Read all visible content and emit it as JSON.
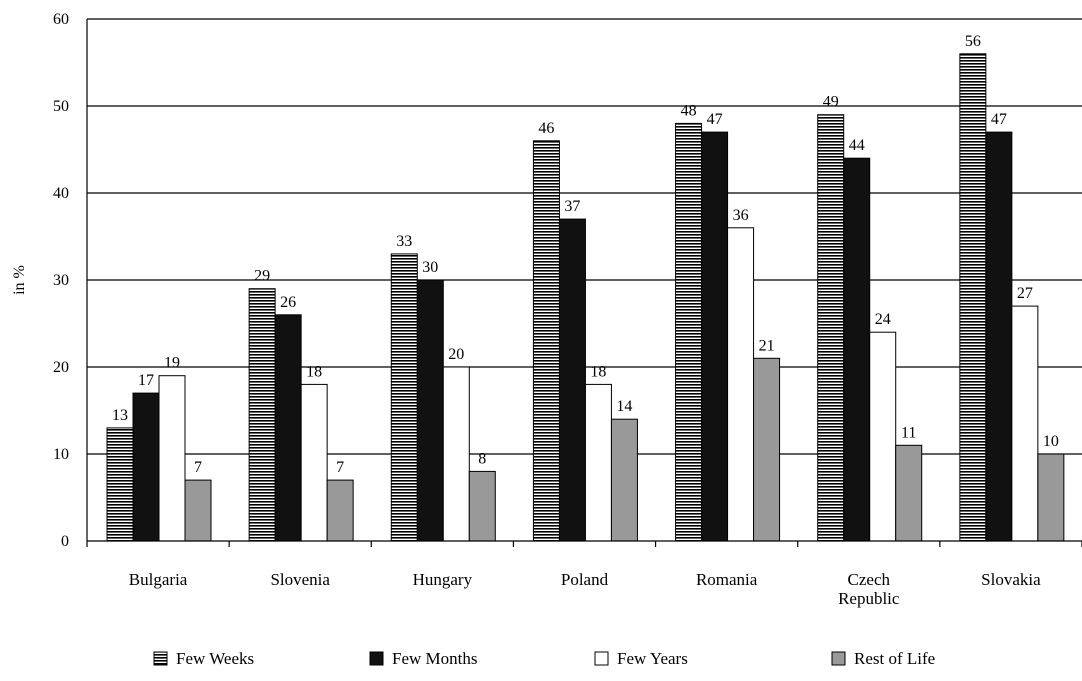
{
  "chart_data": {
    "type": "bar",
    "title": "",
    "xlabel": "",
    "ylabel": "in %",
    "ylim": [
      0,
      60
    ],
    "yticks": [
      0,
      10,
      20,
      30,
      40,
      50,
      60
    ],
    "grid": true,
    "legend_position": "bottom",
    "categories": [
      [
        "Bulgaria"
      ],
      [
        "Slovenia"
      ],
      [
        "Hungary"
      ],
      [
        "Poland"
      ],
      [
        "Romania"
      ],
      [
        "Czech",
        "Republic"
      ],
      [
        "Slovakia"
      ]
    ],
    "series": [
      {
        "name": "Few Weeks",
        "pattern": "horizontal-stripes",
        "color": "#000000",
        "values": [
          13,
          29,
          33,
          46,
          48,
          49,
          56
        ]
      },
      {
        "name": "Few Months",
        "pattern": "solid",
        "color": "#111111",
        "values": [
          17,
          26,
          30,
          37,
          47,
          44,
          47
        ]
      },
      {
        "name": "Few Years",
        "pattern": "solid",
        "color": "#ffffff",
        "values": [
          19,
          18,
          20,
          18,
          36,
          24,
          27
        ]
      },
      {
        "name": "Rest of Life",
        "pattern": "solid",
        "color": "#999999",
        "values": [
          7,
          7,
          8,
          14,
          21,
          11,
          10
        ]
      }
    ]
  }
}
